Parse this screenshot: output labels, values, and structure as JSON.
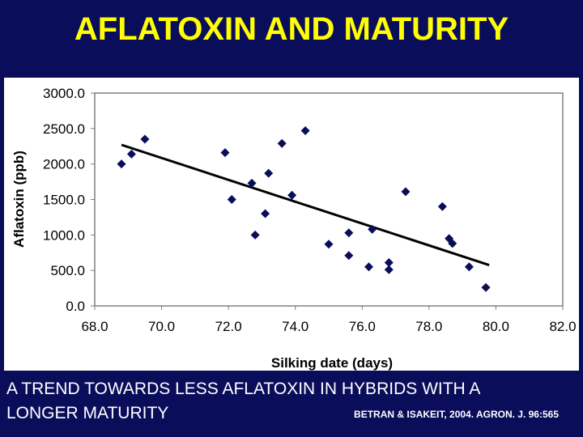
{
  "slide": {
    "title": "AFLATOXIN AND MATURITY",
    "caption_line1": "A TREND TOWARDS LESS AFLATOXIN IN HYBRIDS WITH A",
    "caption_line2": "LONGER MATURITY",
    "citation": "BETRAN & ISAKEIT, 2004. AGRON. J. 96:565"
  },
  "colors": {
    "background": "#0a0e5a",
    "title": "#ffff00",
    "marker": "#0a0e5a",
    "trendline": "#000000"
  },
  "chart_data": {
    "type": "scatter",
    "xlabel": "Silking date (days)",
    "ylabel": "Aflatoxin (ppb)",
    "xlim": [
      68.0,
      82.0
    ],
    "ylim": [
      0.0,
      3000.0
    ],
    "x_ticks": [
      "68.0",
      "70.0",
      "72.0",
      "74.0",
      "76.0",
      "78.0",
      "80.0",
      "82.0"
    ],
    "y_ticks": [
      "0.0",
      "500.0",
      "1000.0",
      "1500.0",
      "2000.0",
      "2500.0",
      "3000.0"
    ],
    "grid": false,
    "legend": "none",
    "points": [
      {
        "x": 68.8,
        "y": 2000
      },
      {
        "x": 69.1,
        "y": 2140
      },
      {
        "x": 69.5,
        "y": 2350
      },
      {
        "x": 71.9,
        "y": 2160
      },
      {
        "x": 72.1,
        "y": 1500
      },
      {
        "x": 72.7,
        "y": 1730
      },
      {
        "x": 72.8,
        "y": 1000
      },
      {
        "x": 73.1,
        "y": 1300
      },
      {
        "x": 73.2,
        "y": 1870
      },
      {
        "x": 73.6,
        "y": 2290
      },
      {
        "x": 73.9,
        "y": 1560
      },
      {
        "x": 74.3,
        "y": 2470
      },
      {
        "x": 75.0,
        "y": 870
      },
      {
        "x": 75.6,
        "y": 1030
      },
      {
        "x": 75.6,
        "y": 710
      },
      {
        "x": 76.2,
        "y": 550
      },
      {
        "x": 76.3,
        "y": 1080
      },
      {
        "x": 76.8,
        "y": 510
      },
      {
        "x": 76.8,
        "y": 610
      },
      {
        "x": 77.3,
        "y": 1610
      },
      {
        "x": 78.4,
        "y": 1400
      },
      {
        "x": 78.6,
        "y": 950
      },
      {
        "x": 78.7,
        "y": 880
      },
      {
        "x": 79.2,
        "y": 550
      },
      {
        "x": 79.7,
        "y": 260
      }
    ],
    "trendline": {
      "x": [
        68.8,
        79.8
      ],
      "y": [
        2270,
        575
      ]
    }
  }
}
